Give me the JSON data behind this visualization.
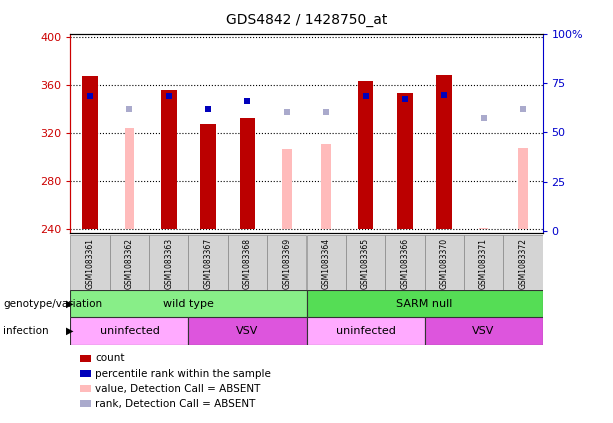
{
  "title": "GDS4842 / 1428750_at",
  "samples": [
    "GSM1083361",
    "GSM1083362",
    "GSM1083363",
    "GSM1083367",
    "GSM1083368",
    "GSM1083369",
    "GSM1083364",
    "GSM1083365",
    "GSM1083366",
    "GSM1083370",
    "GSM1083371",
    "GSM1083372"
  ],
  "ylim_left": [
    237,
    403
  ],
  "ylim_right": [
    -0.9375,
    100
  ],
  "yticks_left": [
    240,
    280,
    320,
    360,
    400
  ],
  "yticks_right": [
    0,
    25,
    50,
    75,
    100
  ],
  "baseline": 240,
  "count_values": [
    368,
    null,
    356,
    328,
    333,
    null,
    null,
    364,
    354,
    369,
    null,
    null
  ],
  "count_color": "#bb0000",
  "absent_value_values": [
    null,
    324,
    null,
    null,
    null,
    307,
    311,
    null,
    null,
    null,
    241,
    308
  ],
  "absent_value_color": "#ffbbbb",
  "percentile_values": [
    351,
    null,
    351,
    340,
    347,
    null,
    null,
    351,
    349,
    352,
    null,
    null
  ],
  "percentile_color": "#0000bb",
  "absent_rank_values": [
    null,
    340,
    null,
    null,
    null,
    338,
    338,
    null,
    null,
    null,
    333,
    340
  ],
  "absent_rank_color": "#aaaacc",
  "genotype_groups": [
    {
      "label": "wild type",
      "start": 0,
      "end": 6,
      "color": "#88ee88"
    },
    {
      "label": "SARM null",
      "start": 6,
      "end": 12,
      "color": "#55dd55"
    }
  ],
  "infection_groups": [
    {
      "label": "uninfected",
      "start": 0,
      "end": 3,
      "color": "#ffaaff"
    },
    {
      "label": "VSV",
      "start": 3,
      "end": 6,
      "color": "#dd55dd"
    },
    {
      "label": "uninfected",
      "start": 6,
      "end": 9,
      "color": "#ffaaff"
    },
    {
      "label": "VSV",
      "start": 9,
      "end": 12,
      "color": "#dd55dd"
    }
  ],
  "legend_items": [
    {
      "label": "count",
      "color": "#bb0000"
    },
    {
      "label": "percentile rank within the sample",
      "color": "#0000bb"
    },
    {
      "label": "value, Detection Call = ABSENT",
      "color": "#ffbbbb"
    },
    {
      "label": "rank, Detection Call = ABSENT",
      "color": "#aaaacc"
    }
  ],
  "bar_width": 0.4,
  "absent_bar_width": 0.25,
  "grid_color": "black",
  "left_axis_color": "#cc0000",
  "right_axis_color": "#0000cc",
  "genotype_label": "genotype/variation",
  "infection_label": "infection",
  "fig_width": 6.13,
  "fig_height": 4.23,
  "dpi": 100
}
